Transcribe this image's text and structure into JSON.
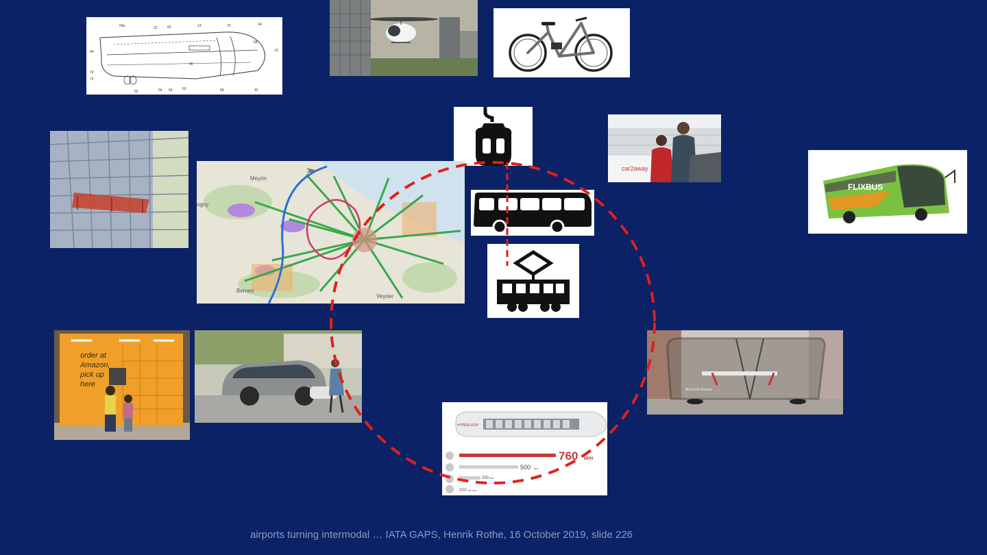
{
  "slide": {
    "background": "#0b2266",
    "accent": "#e0201c",
    "footer": "airports turning intermodal … IATA GAPS, Henrik Rothe, 16 October 2019, slide 226"
  },
  "images": {
    "patent_drawing": {
      "icon": "aircraft-patent-sketch",
      "labels": [
        "69a",
        "32",
        "66",
        "14",
        "70",
        "34",
        "68",
        "10",
        "44",
        "74",
        "72",
        "40",
        "52",
        "54",
        "64",
        "60",
        "68",
        "42"
      ]
    },
    "air_taxi": {
      "icon": "volocopter-air-taxi"
    },
    "ebike": {
      "icon": "electric-bicycle"
    },
    "cable_car": {
      "icon": "gondola-icon"
    },
    "car_share": {
      "icon": "car-rental-counter",
      "brand": "car2away"
    },
    "bus_symbol": {
      "icon": "bus-icon"
    },
    "flixbus": {
      "icon": "green-coach-bus",
      "brand": "FLIXBUS"
    },
    "facade": {
      "icon": "facade-lift-platform"
    },
    "network_map": {
      "icon": "transport-network-map",
      "places": [
        "Meyrin",
        "Bernex",
        "Veyrier",
        "ogny"
      ]
    },
    "tram_symbol": {
      "icon": "tram-icon"
    },
    "locker": {
      "icon": "parcel-locker",
      "lines": [
        "order at",
        "Amazon,",
        "pick up",
        "here"
      ]
    },
    "concept_car": {
      "icon": "autonomous-concept-car"
    },
    "pod": {
      "icon": "glass-pod-vehicle",
      "caption": "Moon On Wheels"
    },
    "hyperloop": {
      "icon": "hyperloop-capsule",
      "brand": "HYPERLOOP",
      "speeds": [
        {
          "value": "760",
          "unit": "MPH"
        },
        {
          "value": "500",
          "unit": "MPH"
        },
        {
          "value": "200",
          "unit": "MPH"
        },
        {
          "value": "60",
          "unit": "MPH"
        }
      ]
    }
  }
}
